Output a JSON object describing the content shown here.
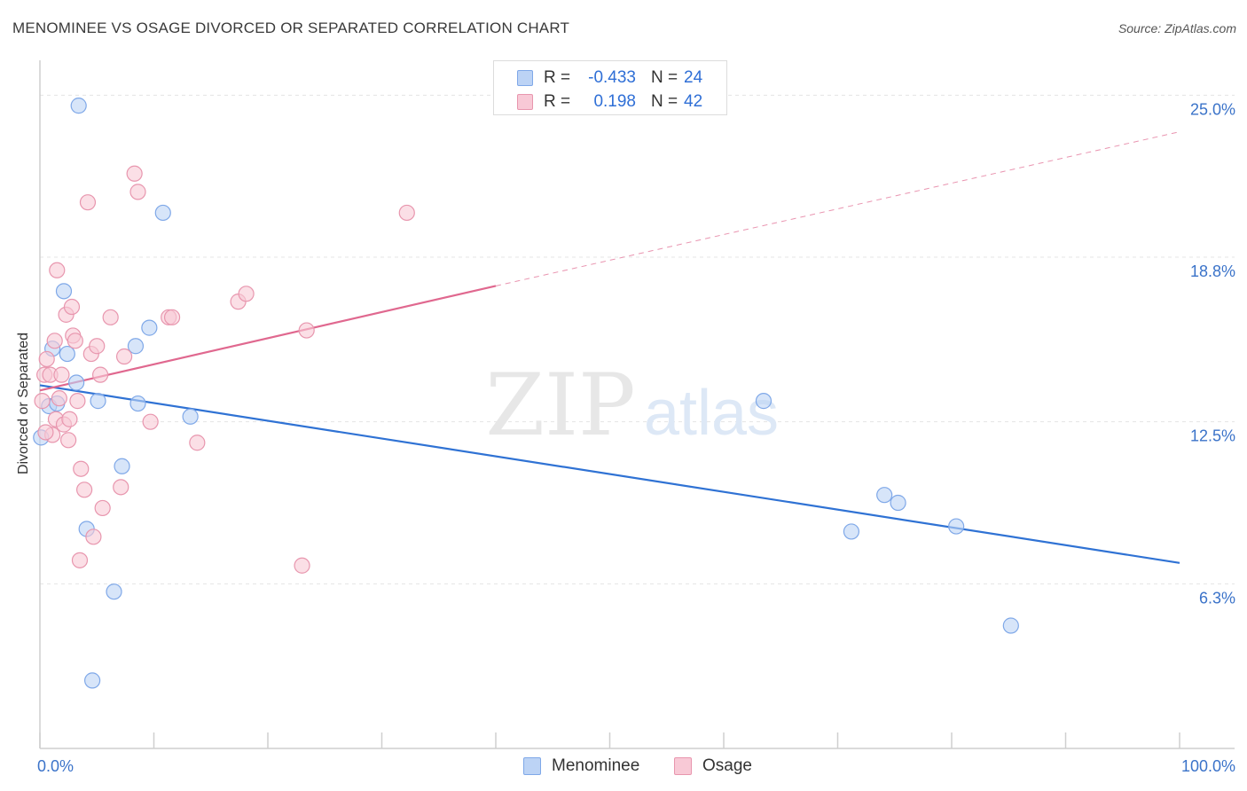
{
  "title": "MENOMINEE VS OSAGE DIVORCED OR SEPARATED CORRELATION CHART",
  "source": "Source: ZipAtlas.com",
  "watermark": {
    "zip": "ZIP",
    "atlas": "atlas"
  },
  "legend": {
    "rows": [
      {
        "r_label": "R =",
        "r_value": "-0.433",
        "n_label": "N =",
        "n_value": "24"
      },
      {
        "r_label": "R =",
        "r_value": "0.198",
        "n_label": "N =",
        "n_value": "42"
      }
    ]
  },
  "colors": {
    "menominee_fill": "#bcd3f5",
    "menominee_stroke": "#7fa8e8",
    "menominee_line": "#2f72d4",
    "osage_fill": "#f8c9d6",
    "osage_stroke": "#e896ae",
    "osage_line": "#e0688f",
    "axis_label": "#3b73c9",
    "grid": "#e4e4e4"
  },
  "chart_data": {
    "type": "scatter",
    "title": "MENOMINEE VS OSAGE DIVORCED OR SEPARATED CORRELATION CHART",
    "xlabel": "",
    "ylabel": "Divorced or Separated",
    "xlim": [
      0,
      100
    ],
    "ylim": [
      0,
      26.2
    ],
    "x_tick_labels": [
      {
        "value": 0,
        "label": "0.0%"
      },
      {
        "value": 100,
        "label": "100.0%"
      }
    ],
    "y_tick_labels": [
      {
        "value": 6.3,
        "label": "6.3%"
      },
      {
        "value": 12.5,
        "label": "12.5%"
      },
      {
        "value": 18.8,
        "label": "18.8%"
      },
      {
        "value": 25.0,
        "label": "25.0%"
      }
    ],
    "series": [
      {
        "name": "Menominee",
        "r": -0.433,
        "n": 24,
        "trend": {
          "x0": 0,
          "y0": 13.9,
          "x1": 100,
          "y1": 7.1,
          "dashed_to": null
        },
        "points": [
          [
            0.1,
            11.9
          ],
          [
            0.8,
            13.1
          ],
          [
            1.1,
            15.3
          ],
          [
            1.5,
            13.2
          ],
          [
            2.1,
            17.5
          ],
          [
            2.4,
            15.1
          ],
          [
            3.4,
            24.6
          ],
          [
            3.2,
            14.0
          ],
          [
            4.1,
            8.4
          ],
          [
            4.6,
            2.6
          ],
          [
            5.1,
            13.3
          ],
          [
            6.5,
            6.0
          ],
          [
            7.2,
            10.8
          ],
          [
            8.4,
            15.4
          ],
          [
            8.6,
            13.2
          ],
          [
            9.6,
            16.1
          ],
          [
            10.8,
            20.5
          ],
          [
            13.2,
            12.7
          ],
          [
            63.5,
            13.3
          ],
          [
            71.2,
            8.3
          ],
          [
            74.1,
            9.7
          ],
          [
            75.3,
            9.4
          ],
          [
            80.4,
            8.5
          ],
          [
            85.2,
            4.7
          ]
        ]
      },
      {
        "name": "Osage",
        "r": 0.198,
        "n": 42,
        "trend": {
          "x0": 0,
          "y0": 13.7,
          "x1": 40,
          "y1": 17.7,
          "dashed_to": {
            "x": 100,
            "y": 23.6
          }
        },
        "points": [
          [
            0.2,
            13.3
          ],
          [
            0.4,
            14.3
          ],
          [
            0.6,
            14.9
          ],
          [
            0.9,
            14.3
          ],
          [
            1.1,
            12.0
          ],
          [
            1.3,
            15.6
          ],
          [
            1.4,
            12.6
          ],
          [
            1.5,
            18.3
          ],
          [
            1.7,
            13.4
          ],
          [
            1.9,
            14.3
          ],
          [
            2.1,
            12.4
          ],
          [
            2.3,
            16.6
          ],
          [
            2.5,
            11.8
          ],
          [
            2.6,
            12.6
          ],
          [
            2.8,
            16.9
          ],
          [
            2.9,
            15.8
          ],
          [
            3.1,
            15.6
          ],
          [
            3.3,
            13.3
          ],
          [
            3.5,
            7.2
          ],
          [
            3.6,
            10.7
          ],
          [
            3.9,
            9.9
          ],
          [
            4.2,
            20.9
          ],
          [
            4.5,
            15.1
          ],
          [
            4.7,
            8.1
          ],
          [
            5.0,
            15.4
          ],
          [
            5.3,
            14.3
          ],
          [
            5.5,
            9.2
          ],
          [
            6.2,
            16.5
          ],
          [
            7.1,
            10.0
          ],
          [
            7.4,
            15.0
          ],
          [
            8.3,
            22.0
          ],
          [
            8.6,
            21.3
          ],
          [
            9.7,
            12.5
          ],
          [
            11.3,
            16.5
          ],
          [
            11.6,
            16.5
          ],
          [
            13.8,
            11.7
          ],
          [
            17.4,
            17.1
          ],
          [
            18.1,
            17.4
          ],
          [
            23.0,
            7.0
          ],
          [
            23.4,
            16.0
          ],
          [
            32.2,
            20.5
          ],
          [
            0.5,
            12.1
          ]
        ]
      }
    ],
    "legend_placement": "bottom-center"
  }
}
